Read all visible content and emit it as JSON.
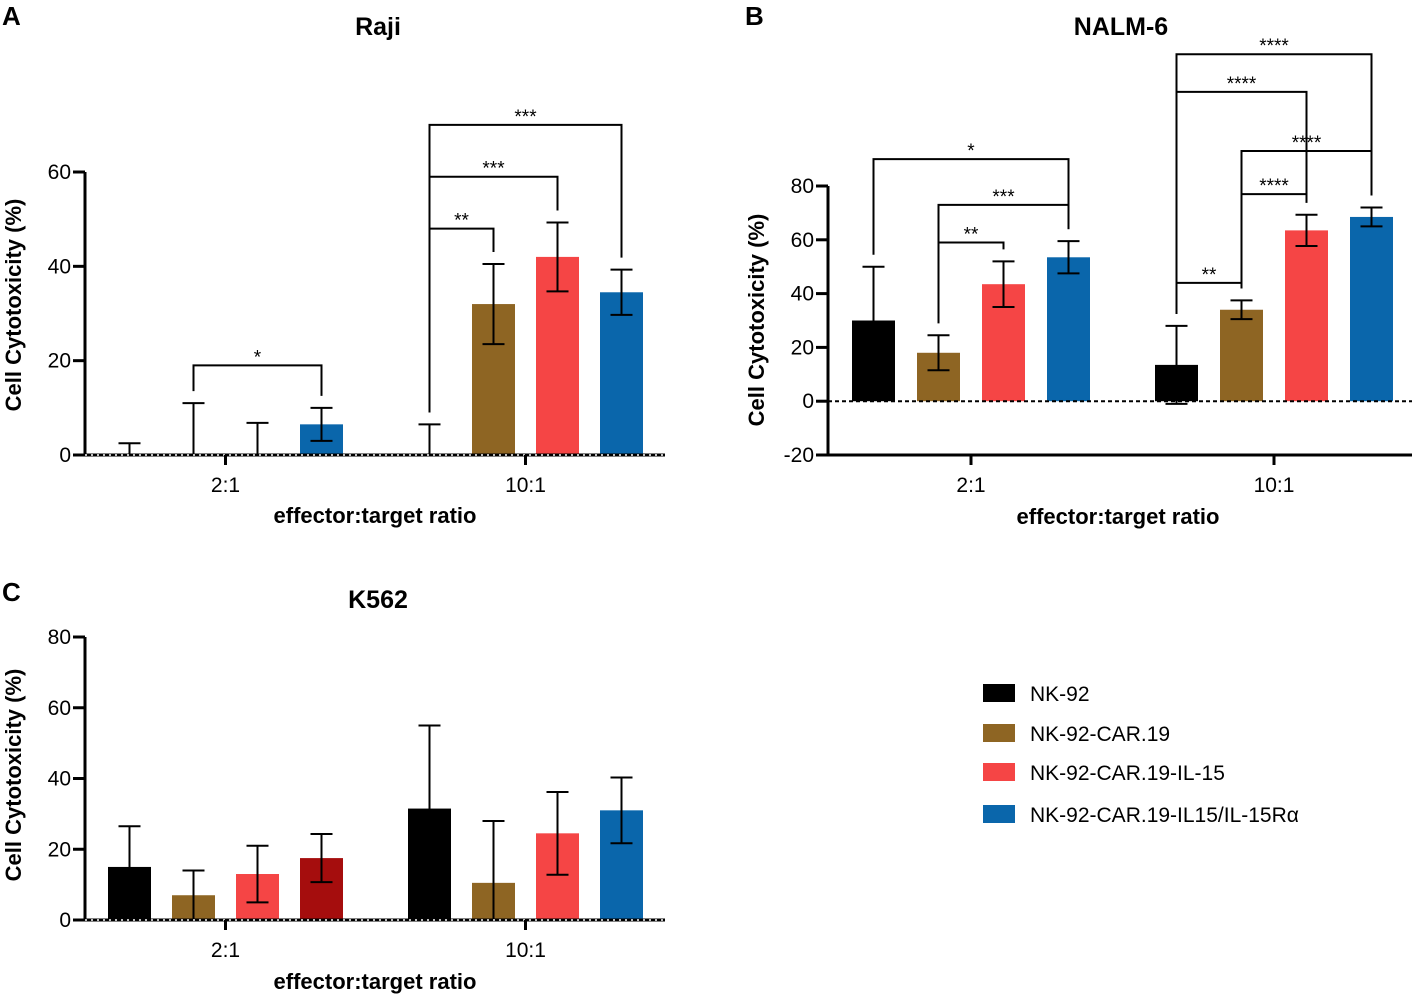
{
  "legend": {
    "items": [
      {
        "label": "NK-92",
        "color": "#000000"
      },
      {
        "label": "NK-92-CAR.19",
        "color": "#8e6523"
      },
      {
        "label": "NK-92-CAR.19-IL-15",
        "color": "#f54545"
      },
      {
        "label": "NK-92-CAR.19-IL15/IL-15Rα",
        "color": "#0a66ab"
      }
    ]
  },
  "chart_data": [
    {
      "panel": "A",
      "type": "bar",
      "title": "Raji",
      "xlabel": "effector:target ratio",
      "ylabel": "Cell Cytotoxicity (%)",
      "ylim": [
        0,
        60
      ],
      "yticks": [
        0,
        20,
        40,
        60
      ],
      "categories": [
        "2:1",
        "10:1"
      ],
      "series": [
        {
          "name": "NK-92",
          "color": "#000000",
          "values": [
            0,
            0
          ],
          "errors": [
            2.5,
            6.5
          ]
        },
        {
          "name": "NK-92-CAR.19",
          "color": "#8e6523",
          "values": [
            0,
            32
          ],
          "errors": [
            11,
            8.5
          ]
        },
        {
          "name": "NK-92-CAR.19-IL-15",
          "color": "#f54545",
          "values": [
            0,
            42
          ],
          "errors": [
            6.8,
            7.3
          ]
        },
        {
          "name": "NK-92-CAR.19-IL15/IL-15Rα",
          "color": "#0a66ab",
          "values": [
            6.5,
            34.5
          ],
          "errors": [
            3.5,
            4.8
          ]
        }
      ],
      "significance": [
        {
          "label": "*",
          "category": 0,
          "from": 1,
          "to": 3,
          "level": 19
        },
        {
          "label": "**",
          "category": 1,
          "from": 0,
          "to": 1,
          "level": 48
        },
        {
          "label": "***",
          "category": 1,
          "from": 0,
          "to": 2,
          "level": 59
        },
        {
          "label": "***",
          "category": 1,
          "from": 0,
          "to": 3,
          "level": 70
        }
      ]
    },
    {
      "panel": "B",
      "type": "bar",
      "title": "NALM-6",
      "xlabel": "effector:target ratio",
      "ylabel": "Cell Cytotoxicity (%)",
      "ylim": [
        -20,
        80
      ],
      "yticks": [
        -20,
        0,
        20,
        40,
        60,
        80
      ],
      "categories": [
        "2:1",
        "10:1"
      ],
      "series": [
        {
          "name": "NK-92",
          "color": "#000000",
          "values": [
            30,
            13.5
          ],
          "errors": [
            20,
            14.5
          ]
        },
        {
          "name": "NK-92-CAR.19",
          "color": "#8e6523",
          "values": [
            18,
            34
          ],
          "errors": [
            6.5,
            3.5
          ]
        },
        {
          "name": "NK-92-CAR.19-IL-15",
          "color": "#f54545",
          "values": [
            43.5,
            63.5
          ],
          "errors": [
            8.5,
            5.8
          ]
        },
        {
          "name": "NK-92-CAR.19-IL15/IL-15Rα",
          "color": "#0a66ab",
          "values": [
            53.5,
            68.5
          ],
          "errors": [
            6,
            3.5
          ]
        }
      ],
      "significance": [
        {
          "label": "**",
          "category": 0,
          "from": 1,
          "to": 2,
          "level": 59
        },
        {
          "label": "***",
          "category": 0,
          "from": 1,
          "to": 3,
          "level": 73
        },
        {
          "label": "*",
          "category": 0,
          "from": 0,
          "to": 3,
          "level": 90
        },
        {
          "label": "**",
          "category": 1,
          "from": 0,
          "to": 1,
          "level": 44
        },
        {
          "label": "****",
          "category": 1,
          "from": 1,
          "to": 2,
          "level": 77
        },
        {
          "label": "****",
          "category": 1,
          "from": 1,
          "to": 3,
          "level": 93
        },
        {
          "label": "****",
          "category": 1,
          "from": 0,
          "to": 2,
          "level": 115
        },
        {
          "label": "****",
          "category": 1,
          "from": 0,
          "to": 3,
          "level": 129
        }
      ]
    },
    {
      "panel": "C",
      "type": "bar",
      "title": "K562",
      "xlabel": "effector:target ratio",
      "ylabel": "Cell Cytotoxicity (%)",
      "ylim": [
        0,
        80
      ],
      "yticks": [
        0,
        20,
        40,
        60,
        80
      ],
      "categories": [
        "2:1",
        "10:1"
      ],
      "series": [
        {
          "name": "NK-92",
          "color": "#000000",
          "values": [
            15,
            31.5
          ],
          "errors": [
            11.5,
            23.5
          ]
        },
        {
          "name": "NK-92-CAR.19",
          "color": "#8e6523",
          "values": [
            7,
            10.5
          ],
          "errors": [
            7,
            17.5
          ]
        },
        {
          "name": "NK-92-CAR.19-IL-15",
          "color": "#f54545",
          "values": [
            13,
            24.5
          ],
          "errors": [
            8,
            11.7
          ]
        },
        {
          "name": "NK-92-CAR.19-IL15/IL-15Rα",
          "color": "#0a66ab",
          "values": [
            17.5,
            31
          ],
          "errors": [
            6.8,
            9.3
          ]
        }
      ],
      "bar_color_overrides": [
        {
          "series": 3,
          "category": 0,
          "color": "#a50d0d"
        }
      ],
      "significance": []
    }
  ]
}
